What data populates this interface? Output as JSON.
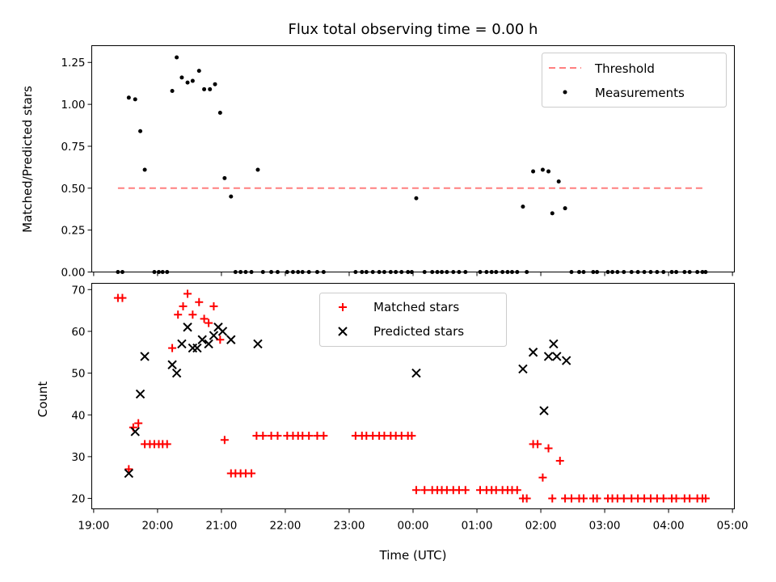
{
  "colors": {
    "threshold": "#ff7f7f",
    "measurements": "#000000",
    "matched": "#ff0000",
    "predicted": "#000000"
  },
  "chart_data": [
    {
      "type": "scatter",
      "title": "Flux total observing time = 0.00 h",
      "xlabel": "",
      "ylabel": "Matched/Predicted stars",
      "xlim": [
        18.97,
        29.03
      ],
      "ylim": [
        0,
        1.35
      ],
      "yticks": [
        "0.00",
        "0.25",
        "0.50",
        "0.75",
        "1.00",
        "1.25"
      ],
      "legend": [
        "Threshold",
        "Measurements"
      ],
      "threshold": {
        "y": 0.5,
        "x_start": 19.38,
        "x_end": 28.58
      },
      "series": [
        {
          "name": "Measurements",
          "points": [
            [
              19.38,
              0
            ],
            [
              19.45,
              0
            ],
            [
              19.55,
              1.04
            ],
            [
              19.65,
              1.03
            ],
            [
              19.73,
              0.84
            ],
            [
              19.8,
              0.61
            ],
            [
              19.95,
              0
            ],
            [
              20.02,
              0
            ],
            [
              20.08,
              0
            ],
            [
              20.15,
              0
            ],
            [
              20.23,
              1.08
            ],
            [
              20.3,
              1.28
            ],
            [
              20.38,
              1.16
            ],
            [
              20.47,
              1.13
            ],
            [
              20.55,
              1.14
            ],
            [
              20.65,
              1.2
            ],
            [
              20.73,
              1.09
            ],
            [
              20.82,
              1.09
            ],
            [
              20.9,
              1.12
            ],
            [
              20.98,
              0.95
            ],
            [
              21.05,
              0.56
            ],
            [
              21.15,
              0.45
            ],
            [
              21.22,
              0
            ],
            [
              21.3,
              0
            ],
            [
              21.38,
              0
            ],
            [
              21.47,
              0
            ],
            [
              21.57,
              0.61
            ],
            [
              21.65,
              0
            ],
            [
              21.78,
              0
            ],
            [
              21.88,
              0
            ],
            [
              22.03,
              0
            ],
            [
              22.12,
              0
            ],
            [
              22.2,
              0
            ],
            [
              22.27,
              0
            ],
            [
              22.37,
              0
            ],
            [
              22.5,
              0
            ],
            [
              22.6,
              0
            ],
            [
              23.1,
              0
            ],
            [
              23.2,
              0
            ],
            [
              23.27,
              0
            ],
            [
              23.37,
              0
            ],
            [
              23.47,
              0
            ],
            [
              23.55,
              0
            ],
            [
              23.65,
              0
            ],
            [
              23.73,
              0
            ],
            [
              23.82,
              0
            ],
            [
              23.92,
              0
            ],
            [
              23.98,
              0
            ],
            [
              24.05,
              0.44
            ],
            [
              24.18,
              0
            ],
            [
              24.3,
              0
            ],
            [
              24.38,
              0
            ],
            [
              24.45,
              0
            ],
            [
              24.53,
              0
            ],
            [
              24.63,
              0
            ],
            [
              24.72,
              0
            ],
            [
              24.82,
              0
            ],
            [
              25.05,
              0
            ],
            [
              25.15,
              0
            ],
            [
              25.23,
              0
            ],
            [
              25.3,
              0
            ],
            [
              25.4,
              0
            ],
            [
              25.48,
              0
            ],
            [
              25.55,
              0
            ],
            [
              25.63,
              0
            ],
            [
              25.72,
              0.39
            ],
            [
              25.78,
              0
            ],
            [
              25.88,
              0.6
            ],
            [
              26.03,
              0.61
            ],
            [
              26.12,
              0.6
            ],
            [
              26.18,
              0.35
            ],
            [
              26.28,
              0.54
            ],
            [
              26.38,
              0.38
            ],
            [
              26.48,
              0
            ],
            [
              26.6,
              0
            ],
            [
              26.67,
              0
            ],
            [
              26.82,
              0
            ],
            [
              26.88,
              0
            ],
            [
              27.05,
              0
            ],
            [
              27.12,
              0
            ],
            [
              27.2,
              0
            ],
            [
              27.3,
              0
            ],
            [
              27.42,
              0
            ],
            [
              27.52,
              0
            ],
            [
              27.62,
              0
            ],
            [
              27.72,
              0
            ],
            [
              27.82,
              0
            ],
            [
              27.92,
              0
            ],
            [
              28.05,
              0
            ],
            [
              28.12,
              0
            ],
            [
              28.25,
              0
            ],
            [
              28.33,
              0
            ],
            [
              28.45,
              0
            ],
            [
              28.53,
              0
            ],
            [
              28.58,
              0
            ]
          ]
        }
      ]
    },
    {
      "type": "scatter",
      "title": "",
      "xlabel": "Time (UTC)",
      "ylabel": "Count",
      "xlim": [
        18.97,
        29.03
      ],
      "ylim": [
        17.5,
        71.5
      ],
      "yticks": [
        "20",
        "30",
        "40",
        "50",
        "60",
        "70"
      ],
      "xticks": [
        "19:00",
        "20:00",
        "21:00",
        "22:00",
        "23:00",
        "00:00",
        "01:00",
        "02:00",
        "03:00",
        "04:00",
        "05:00"
      ],
      "legend": [
        "Matched stars",
        "Predicted stars"
      ],
      "series": [
        {
          "name": "Matched stars",
          "points": [
            [
              19.38,
              68
            ],
            [
              19.45,
              68
            ],
            [
              19.55,
              27
            ],
            [
              19.62,
              37
            ],
            [
              19.7,
              38
            ],
            [
              19.8,
              33
            ],
            [
              19.88,
              33
            ],
            [
              19.95,
              33
            ],
            [
              20.02,
              33
            ],
            [
              20.08,
              33
            ],
            [
              20.15,
              33
            ],
            [
              20.23,
              56
            ],
            [
              20.32,
              64
            ],
            [
              20.4,
              66
            ],
            [
              20.47,
              69
            ],
            [
              20.55,
              64
            ],
            [
              20.65,
              67
            ],
            [
              20.73,
              63
            ],
            [
              20.8,
              62
            ],
            [
              20.88,
              66
            ],
            [
              20.98,
              58
            ],
            [
              21.05,
              34
            ],
            [
              21.15,
              26
            ],
            [
              21.22,
              26
            ],
            [
              21.3,
              26
            ],
            [
              21.38,
              26
            ],
            [
              21.47,
              26
            ],
            [
              21.55,
              35
            ],
            [
              21.65,
              35
            ],
            [
              21.78,
              35
            ],
            [
              21.88,
              35
            ],
            [
              22.03,
              35
            ],
            [
              22.12,
              35
            ],
            [
              22.2,
              35
            ],
            [
              22.27,
              35
            ],
            [
              22.37,
              35
            ],
            [
              22.5,
              35
            ],
            [
              22.6,
              35
            ],
            [
              23.1,
              35
            ],
            [
              23.2,
              35
            ],
            [
              23.27,
              35
            ],
            [
              23.37,
              35
            ],
            [
              23.47,
              35
            ],
            [
              23.55,
              35
            ],
            [
              23.65,
              35
            ],
            [
              23.73,
              35
            ],
            [
              23.82,
              35
            ],
            [
              23.92,
              35
            ],
            [
              23.98,
              35
            ],
            [
              24.05,
              22
            ],
            [
              24.18,
              22
            ],
            [
              24.3,
              22
            ],
            [
              24.38,
              22
            ],
            [
              24.45,
              22
            ],
            [
              24.53,
              22
            ],
            [
              24.63,
              22
            ],
            [
              24.72,
              22
            ],
            [
              24.82,
              22
            ],
            [
              25.05,
              22
            ],
            [
              25.15,
              22
            ],
            [
              25.23,
              22
            ],
            [
              25.3,
              22
            ],
            [
              25.4,
              22
            ],
            [
              25.48,
              22
            ],
            [
              25.55,
              22
            ],
            [
              25.63,
              22
            ],
            [
              25.72,
              20
            ],
            [
              25.78,
              20
            ],
            [
              25.88,
              33
            ],
            [
              25.95,
              33
            ],
            [
              26.03,
              25
            ],
            [
              26.12,
              32
            ],
            [
              26.18,
              20
            ],
            [
              26.3,
              29
            ],
            [
              26.38,
              20
            ],
            [
              26.48,
              20
            ],
            [
              26.6,
              20
            ],
            [
              26.67,
              20
            ],
            [
              26.82,
              20
            ],
            [
              26.88,
              20
            ],
            [
              27.05,
              20
            ],
            [
              27.12,
              20
            ],
            [
              27.2,
              20
            ],
            [
              27.3,
              20
            ],
            [
              27.42,
              20
            ],
            [
              27.52,
              20
            ],
            [
              27.62,
              20
            ],
            [
              27.72,
              20
            ],
            [
              27.82,
              20
            ],
            [
              27.92,
              20
            ],
            [
              28.05,
              20
            ],
            [
              28.12,
              20
            ],
            [
              28.25,
              20
            ],
            [
              28.33,
              20
            ],
            [
              28.45,
              20
            ],
            [
              28.53,
              20
            ],
            [
              28.58,
              20
            ]
          ]
        },
        {
          "name": "Predicted stars",
          "points": [
            [
              19.55,
              26
            ],
            [
              19.65,
              36
            ],
            [
              19.73,
              45
            ],
            [
              19.8,
              54
            ],
            [
              20.23,
              52
            ],
            [
              20.3,
              50
            ],
            [
              20.38,
              57
            ],
            [
              20.47,
              61
            ],
            [
              20.55,
              56
            ],
            [
              20.62,
              56
            ],
            [
              20.7,
              58
            ],
            [
              20.8,
              57
            ],
            [
              20.88,
              59
            ],
            [
              20.95,
              61
            ],
            [
              21.02,
              60
            ],
            [
              21.15,
              58
            ],
            [
              21.57,
              57
            ],
            [
              24.05,
              50
            ],
            [
              25.72,
              51
            ],
            [
              25.88,
              55
            ],
            [
              26.05,
              41
            ],
            [
              26.12,
              54
            ],
            [
              26.2,
              57
            ],
            [
              26.25,
              54
            ],
            [
              26.4,
              53
            ]
          ]
        }
      ]
    }
  ]
}
